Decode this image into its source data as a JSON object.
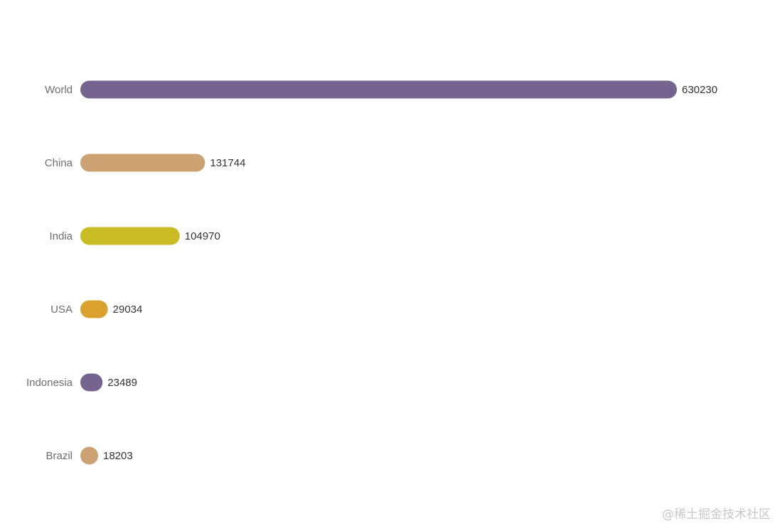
{
  "chart_data": {
    "type": "bar",
    "orientation": "horizontal",
    "categories": [
      "World",
      "China",
      "India",
      "USA",
      "Indonesia",
      "Brazil"
    ],
    "values": [
      630230,
      131744,
      104970,
      29034,
      23489,
      18203
    ],
    "colors": [
      "#756490",
      "#cda273",
      "#c9bb24",
      "#dba12e",
      "#756490",
      "#cda273"
    ],
    "xlim": [
      0,
      630230
    ],
    "grid": false,
    "legend": "none"
  },
  "watermark": "@稀土掘金技术社区"
}
